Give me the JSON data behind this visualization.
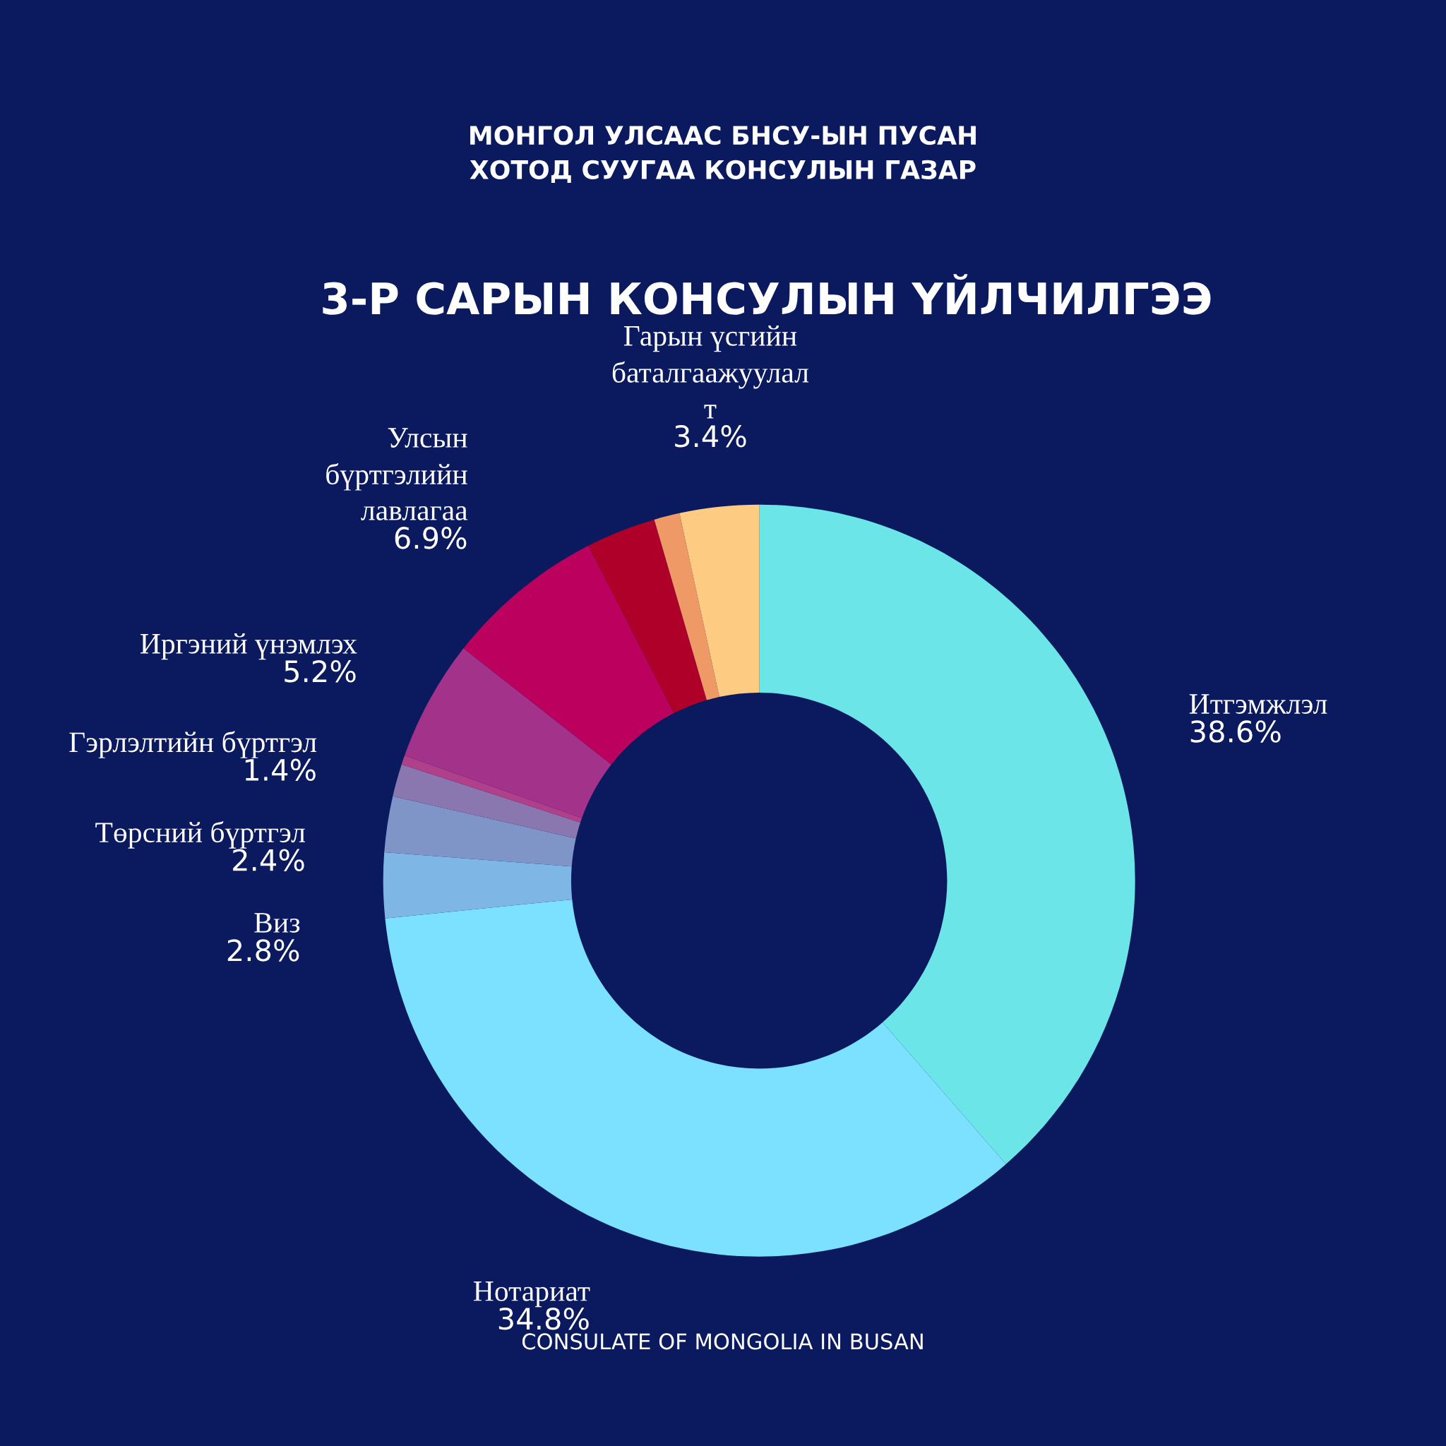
{
  "chart_data": {
    "type": "donut",
    "title": "3-Р САРЫН КОНСУЛЫН ҮЙЛЧИЛГЭЭ",
    "annotations": [
      "МОНГОЛ УЛСААС БНСУ-ЫН ПУСАН\nХОТОД СУУГАА КОНСУЛЫН ГАЗАР",
      "CONSULATE OF MONGOLIA IN BUSAN"
    ],
    "categories": [
      "Итгэмжлэл",
      "Нотариат",
      "Виз",
      "Төрсний бүртгэл",
      "Гэрлэлтийн бүртгэл",
      null,
      "Иргэний үнэмлэх",
      "Улсын\nбүртгэлийн\nлавлагаа",
      null,
      null,
      "Гарын үсгийн\nбаталгаажуулал\nт"
    ],
    "values": [
      38.6,
      34.8,
      2.8,
      2.4,
      1.4,
      0.4,
      5.2,
      6.9,
      3.0,
      1.1,
      3.4
    ],
    "value_labels": [
      "38.6%",
      "34.8%",
      "2.8%",
      "2.4%",
      "1.4%",
      null,
      "5.2%",
      "6.9%",
      null,
      null,
      "3.4%"
    ],
    "colors": [
      "#6ce5e8",
      "#7be1fe",
      "#7eb6e6",
      "#7f95c8",
      "#8a77b0",
      "#b0408a",
      "#a3338a",
      "#bb005d",
      "#ae0029",
      "#ee9966",
      "#fecb82"
    ]
  }
}
